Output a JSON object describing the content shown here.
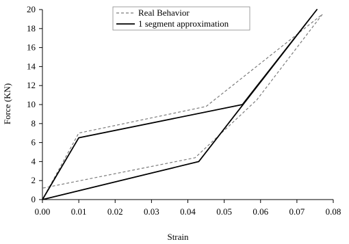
{
  "chart_data": {
    "type": "line",
    "title": "",
    "xlabel": "Strain",
    "ylabel": "Force (KN)",
    "xlim": [
      0,
      0.08
    ],
    "ylim": [
      0,
      20
    ],
    "x_ticks": [
      "0.00",
      "0.01",
      "0.02",
      "0.03",
      "0.04",
      "0.05",
      "0.06",
      "0.07",
      "0.08"
    ],
    "y_ticks": [
      "0",
      "2",
      "4",
      "6",
      "8",
      "10",
      "12",
      "14",
      "16",
      "18",
      "20"
    ],
    "grid": false,
    "legend_position": "top-center",
    "series": [
      {
        "name": "Real Behavior",
        "style": "dashed",
        "color": "#7a7a7a",
        "x": [
          0.0,
          0.01,
          0.045,
          0.077,
          0.059,
          0.042,
          0.0
        ],
        "y": [
          0.0,
          7.0,
          9.8,
          19.5,
          10.5,
          4.4,
          1.2
        ]
      },
      {
        "name": "1 segment approximation",
        "style": "solid",
        "color": "#000000",
        "x": [
          0.0,
          0.01,
          0.055,
          0.0755,
          0.043,
          0.0
        ],
        "y": [
          0.0,
          6.5,
          10.0,
          20.0,
          4.0,
          0.0
        ]
      }
    ]
  }
}
